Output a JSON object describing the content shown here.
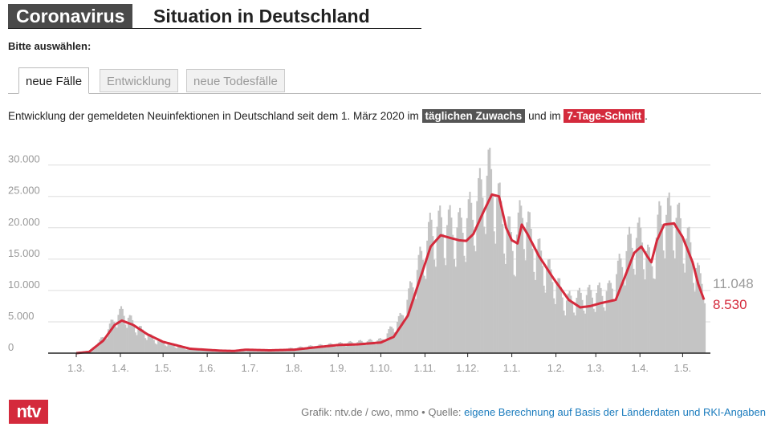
{
  "header": {
    "tag": "Coronavirus",
    "title": "Situation in Deutschland"
  },
  "select_label": "Bitte auswählen:",
  "tabs": [
    {
      "label": "neue Fälle",
      "active": true
    },
    {
      "label": "Entwicklung",
      "active": false
    },
    {
      "label": "neue Todesfälle",
      "active": false
    }
  ],
  "description": {
    "before": "Entwicklung der gemeldeten Neuinfektionen in Deutschland seit dem 1. März 2020 im ",
    "highlight1": "täglichen Zuwachs",
    "middle": " und im ",
    "highlight2": "7-Tage-Schnitt",
    "after": "."
  },
  "colors": {
    "bars": "#c4c4c4",
    "line": "#d42a3c",
    "grid": "#dddddd",
    "header_bg": "#4a4a4a"
  },
  "chart_data": {
    "type": "bar",
    "y_ticks": [
      "30.000",
      "25.000",
      "20.000",
      "15.000",
      "10.000",
      "5.000",
      "0"
    ],
    "ylim": [
      0,
      32000
    ],
    "x_ticks": [
      "1.3.",
      "1.4.",
      "1.5.",
      "1.6.",
      "1.7.",
      "1.8.",
      "1.9.",
      "1.10.",
      "1.11.",
      "1.12.",
      "1.1.",
      "1.2.",
      "1.3.",
      "1.4.",
      "1.5."
    ],
    "series": [
      {
        "name": "täglichen Zuwachs",
        "style": "bars",
        "shape": "daily new infections, weekly cycle",
        "keypoints": [
          [
            "2020-03-01",
            0
          ],
          [
            "2020-03-10",
            300
          ],
          [
            "2020-03-20",
            2500
          ],
          [
            "2020-03-28",
            5500
          ],
          [
            "2020-04-02",
            6300
          ],
          [
            "2020-04-12",
            4000
          ],
          [
            "2020-04-25",
            2000
          ],
          [
            "2020-05-15",
            800
          ],
          [
            "2020-06-15",
            400
          ],
          [
            "2020-07-15",
            400
          ],
          [
            "2020-08-15",
            1100
          ],
          [
            "2020-09-15",
            1700
          ],
          [
            "2020-10-01",
            2000
          ],
          [
            "2020-10-15",
            5500
          ],
          [
            "2020-10-25",
            12000
          ],
          [
            "2020-11-05",
            19000
          ],
          [
            "2020-11-15",
            19500
          ],
          [
            "2020-11-25",
            19000
          ],
          [
            "2020-12-05",
            22000
          ],
          [
            "2020-12-15",
            27500
          ],
          [
            "2020-12-25",
            21000
          ],
          [
            "2021-01-02",
            16000
          ],
          [
            "2021-01-08",
            22000
          ],
          [
            "2021-01-15",
            17000
          ],
          [
            "2021-01-25",
            13000
          ],
          [
            "2021-02-08",
            8000
          ],
          [
            "2021-02-25",
            9000
          ],
          [
            "2021-03-10",
            9500
          ],
          [
            "2021-03-25",
            17000
          ],
          [
            "2021-04-02",
            18000
          ],
          [
            "2021-04-08",
            13000
          ],
          [
            "2021-04-15",
            21000
          ],
          [
            "2021-04-25",
            21000
          ],
          [
            "2021-05-05",
            16500
          ],
          [
            "2021-05-12",
            11500
          ],
          [
            "2021-05-16",
            11048
          ]
        ]
      },
      {
        "name": "7-Tage-Schnitt",
        "style": "line",
        "keypoints": [
          [
            "2020-03-01",
            0
          ],
          [
            "2020-03-10",
            200
          ],
          [
            "2020-03-20",
            2000
          ],
          [
            "2020-03-28",
            4500
          ],
          [
            "2020-04-02",
            5200
          ],
          [
            "2020-04-10",
            4500
          ],
          [
            "2020-04-20",
            3000
          ],
          [
            "2020-05-01",
            1800
          ],
          [
            "2020-05-20",
            700
          ],
          [
            "2020-06-10",
            400
          ],
          [
            "2020-06-20",
            350
          ],
          [
            "2020-06-28",
            550
          ],
          [
            "2020-07-15",
            450
          ],
          [
            "2020-08-01",
            550
          ],
          [
            "2020-08-15",
            900
          ],
          [
            "2020-09-01",
            1300
          ],
          [
            "2020-09-15",
            1400
          ],
          [
            "2020-10-01",
            1700
          ],
          [
            "2020-10-10",
            2600
          ],
          [
            "2020-10-20",
            6000
          ],
          [
            "2020-10-28",
            11500
          ],
          [
            "2020-11-05",
            17000
          ],
          [
            "2020-11-12",
            18800
          ],
          [
            "2020-11-20",
            18300
          ],
          [
            "2020-11-25",
            18000
          ],
          [
            "2020-11-30",
            17900
          ],
          [
            "2020-12-05",
            19000
          ],
          [
            "2020-12-12",
            22500
          ],
          [
            "2020-12-18",
            25300
          ],
          [
            "2020-12-23",
            25000
          ],
          [
            "2020-12-28",
            20000
          ],
          [
            "2021-01-01",
            18000
          ],
          [
            "2021-01-05",
            17500
          ],
          [
            "2021-01-08",
            20500
          ],
          [
            "2021-01-12",
            19000
          ],
          [
            "2021-01-20",
            15500
          ],
          [
            "2021-01-30",
            12000
          ],
          [
            "2021-02-10",
            8500
          ],
          [
            "2021-02-18",
            7300
          ],
          [
            "2021-02-25",
            7500
          ],
          [
            "2021-03-05",
            8000
          ],
          [
            "2021-03-15",
            8500
          ],
          [
            "2021-03-22",
            12500
          ],
          [
            "2021-03-28",
            16000
          ],
          [
            "2021-04-02",
            17000
          ],
          [
            "2021-04-06",
            15500
          ],
          [
            "2021-04-09",
            14500
          ],
          [
            "2021-04-13",
            18000
          ],
          [
            "2021-04-18",
            20500
          ],
          [
            "2021-04-25",
            20700
          ],
          [
            "2021-05-01",
            18500
          ],
          [
            "2021-05-08",
            14500
          ],
          [
            "2021-05-12",
            11000
          ],
          [
            "2021-05-16",
            8530
          ]
        ]
      }
    ],
    "last_values": {
      "bars": "11.048",
      "line": "8.530"
    }
  },
  "footer": {
    "text": "Grafik: ntv.de / cwo, mmo • Quelle: ",
    "link": "eigene Berechnung auf Basis der Länderdaten und RKI-Angaben"
  },
  "logo": "ntv"
}
